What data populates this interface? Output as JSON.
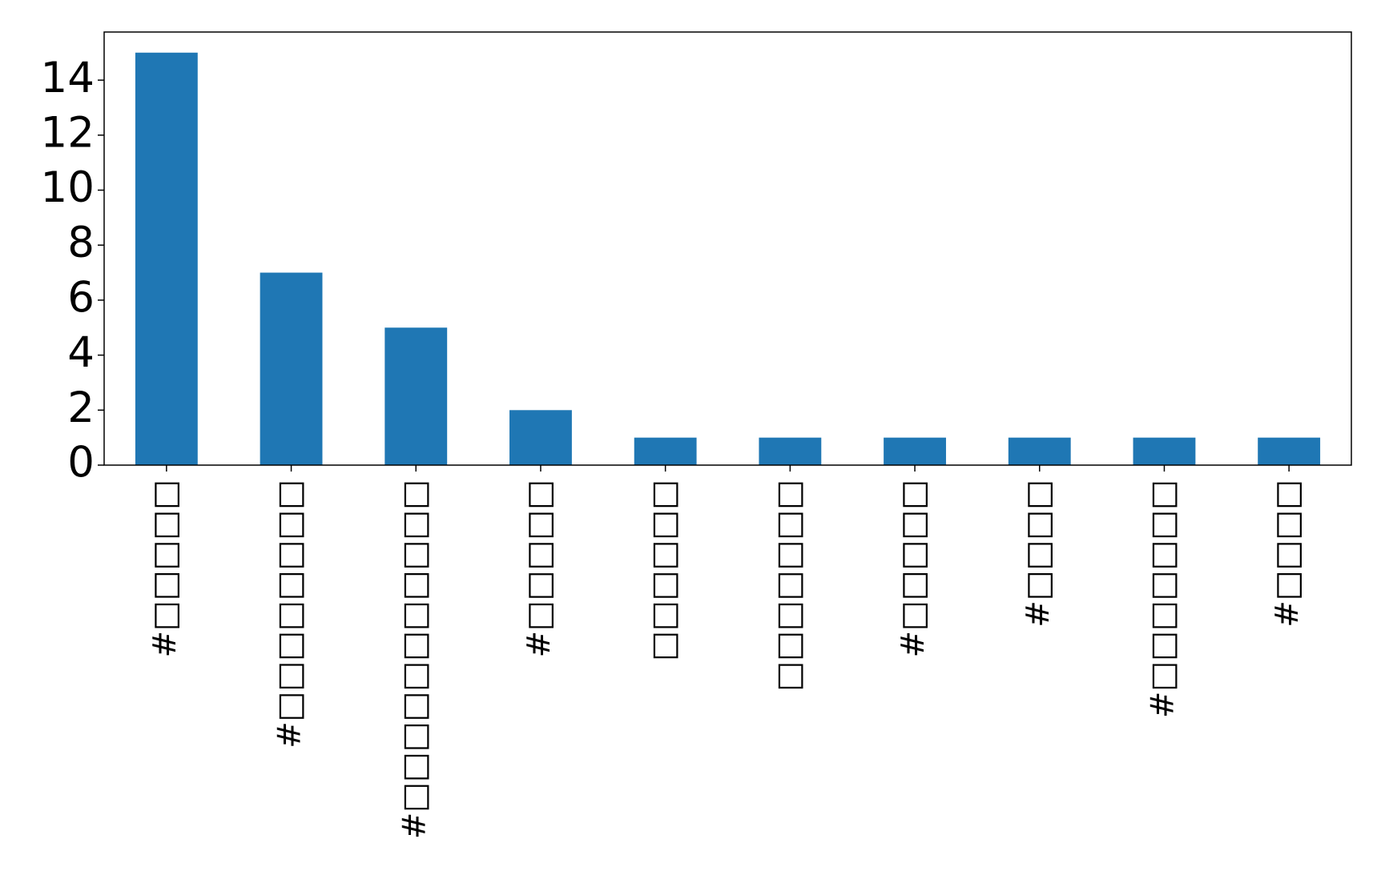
{
  "chart_data": {
    "type": "bar",
    "categories": [
      "#□□□□□",
      "#□□□□□□□□",
      "#□□□□□□□□□□□",
      "#□□□□□",
      "□□□□□□",
      "□□□□□□□",
      "#□□□□□",
      "#□□□□",
      "#□□□□□□□",
      "#□□□□"
    ],
    "values": [
      15,
      7,
      5,
      2,
      1,
      1,
      1,
      1,
      1,
      1
    ],
    "color": "#1f77b4",
    "ylim": [
      0,
      15.75
    ],
    "yticks": [
      0,
      2,
      4,
      6,
      8,
      10,
      12,
      14
    ]
  }
}
